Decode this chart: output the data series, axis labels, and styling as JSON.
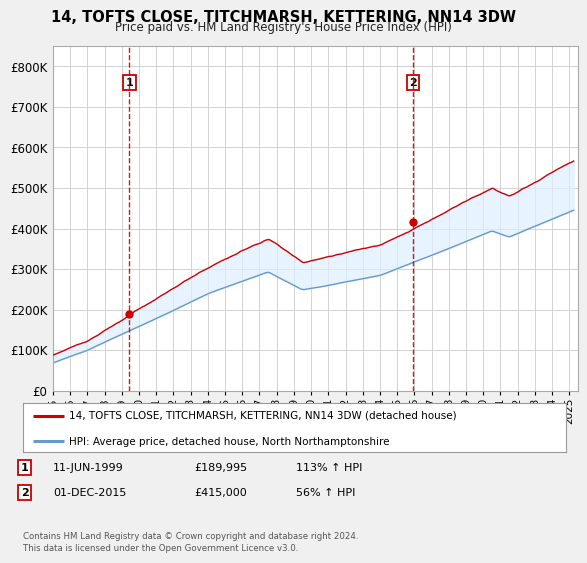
{
  "title": "14, TOFTS CLOSE, TITCHMARSH, KETTERING, NN14 3DW",
  "subtitle": "Price paid vs. HM Land Registry's House Price Index (HPI)",
  "ylim": [
    0,
    850000
  ],
  "yticks": [
    0,
    100000,
    200000,
    300000,
    400000,
    500000,
    600000,
    700000,
    800000
  ],
  "ytick_labels": [
    "£0",
    "£100K",
    "£200K",
    "£300K",
    "£400K",
    "£500K",
    "£600K",
    "£700K",
    "£800K"
  ],
  "bg_color": "#f0f0f0",
  "plot_bg": "#ffffff",
  "fill_color": "#ddeeff",
  "grid_color": "#cccccc",
  "red_line_color": "#cc0000",
  "blue_line_color": "#6699cc",
  "transaction1": {
    "date_num": 1999.44,
    "price": 189995,
    "label": "1"
  },
  "transaction2": {
    "date_num": 2015.92,
    "price": 415000,
    "label": "2"
  },
  "legend_entries": [
    "14, TOFTS CLOSE, TITCHMARSH, KETTERING, NN14 3DW (detached house)",
    "HPI: Average price, detached house, North Northamptonshire"
  ],
  "table_rows": [
    [
      "1",
      "11-JUN-1999",
      "£189,995",
      "113% ↑ HPI"
    ],
    [
      "2",
      "01-DEC-2015",
      "£415,000",
      "56% ↑ HPI"
    ]
  ],
  "footer": "Contains HM Land Registry data © Crown copyright and database right 2024.\nThis data is licensed under the Open Government Licence v3.0.",
  "xmin": 1995.0,
  "xmax": 2025.5,
  "xtick_years": [
    1995,
    1996,
    1997,
    1998,
    1999,
    2000,
    2001,
    2002,
    2003,
    2004,
    2005,
    2006,
    2007,
    2008,
    2009,
    2010,
    2011,
    2012,
    2013,
    2014,
    2015,
    2016,
    2017,
    2018,
    2019,
    2020,
    2021,
    2022,
    2023,
    2024,
    2025
  ]
}
